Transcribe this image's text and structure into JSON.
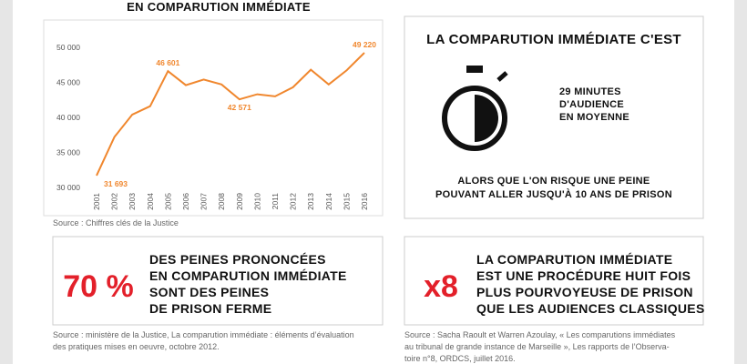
{
  "chart_data": {
    "type": "line",
    "title": "EN COMPARUTION IMMÉDIATE",
    "categories": [
      "2001",
      "2002",
      "2003",
      "2004",
      "2005",
      "2006",
      "2007",
      "2008",
      "2009",
      "2010",
      "2011",
      "2012",
      "2013",
      "2014",
      "2015",
      "2016"
    ],
    "values": [
      31693,
      37200,
      40400,
      41600,
      46601,
      44600,
      45400,
      44700,
      42571,
      43300,
      43000,
      44300,
      46800,
      44700,
      46700,
      49220
    ],
    "value_labels": [
      "31 693",
      null,
      null,
      null,
      "46 601",
      null,
      null,
      null,
      "42 571",
      null,
      null,
      null,
      null,
      null,
      null,
      "49 220"
    ],
    "color": "#f0872e",
    "ylim": [
      30000,
      50000
    ],
    "yticks": [
      {
        "value": 30000,
        "label": "30 000"
      },
      {
        "value": 35000,
        "label": "35 000"
      },
      {
        "value": 40000,
        "label": "40 000"
      },
      {
        "value": 45000,
        "label": "45 000"
      },
      {
        "value": 50000,
        "label": "50 000"
      }
    ],
    "grid": false,
    "source": "Source : Chiffres clés de la Justice"
  },
  "panels": {
    "duration": {
      "title": "LA COMPARUTION IMMÉDIATE C'EST",
      "lines": [
        "29 MINUTES",
        "D'AUDIENCE",
        "EN MOYENNE"
      ],
      "note": [
        "ALORS QUE L'ON RISQUE UNE PEINE",
        "POUVANT ALLER JUSQU'À 10 ANS DE PRISON"
      ]
    },
    "prison": {
      "figure": "70 %",
      "lines": [
        "DES PEINES PRONONCÉES",
        "EN COMPARUTION IMMÉDIATE",
        "SONT DES PEINES",
        "DE PRISON FERME"
      ],
      "source": [
        "Source : ministère de la Justice, La comparution immédiate : éléments d’évaluation",
        "des pratiques mises en oeuvre, octobre 2012."
      ]
    },
    "ratio": {
      "figure": "x8",
      "lines": [
        "LA COMPARUTION IMMÉDIATE",
        "EST UNE PROCÉDURE HUIT FOIS",
        "PLUS POURVOYEUSE DE PRISON",
        "QUE LES AUDIENCES CLASSIQUES"
      ],
      "source": [
        "Source : Sacha Raoult et Warren Azoulay, « Les comparutions immédiates",
        "au tribunal de grande instance de Marseille », Les rapports de l’Observa-",
        "toire n°8, ORDCS, juillet 2016."
      ]
    }
  }
}
